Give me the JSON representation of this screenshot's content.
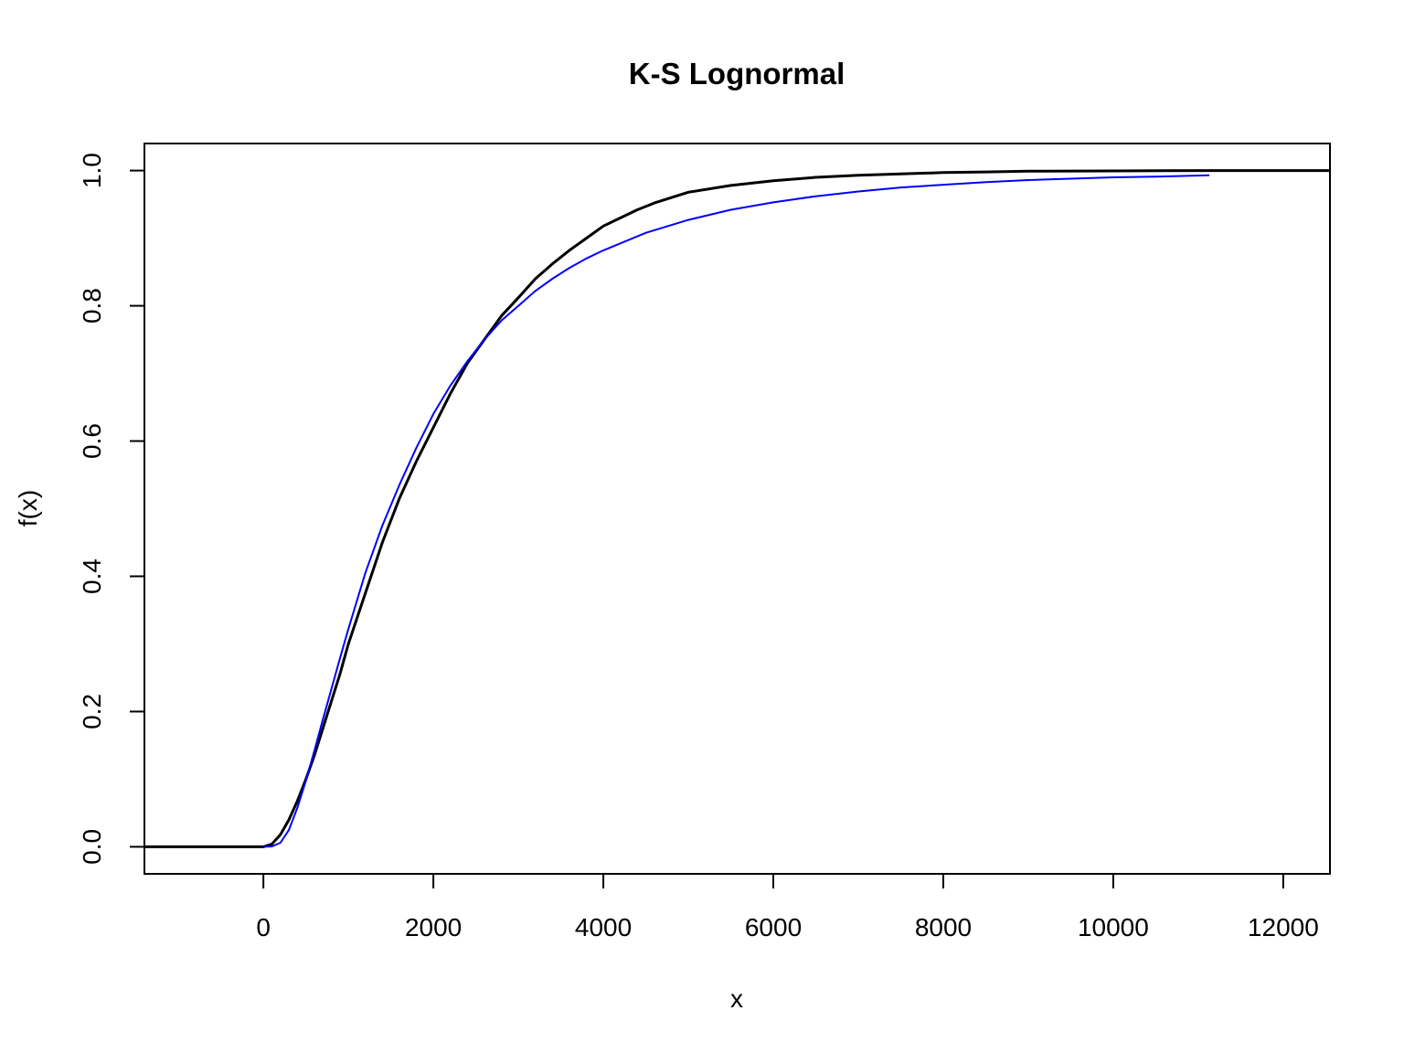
{
  "chart_data": {
    "type": "line",
    "title": "K-S Lognormal",
    "xlabel": "x",
    "ylabel": "f(x)",
    "xlim": [
      -1400,
      12550
    ],
    "ylim": [
      -0.04,
      1.04
    ],
    "x_ticks": [
      0,
      2000,
      4000,
      6000,
      8000,
      10000,
      12000
    ],
    "x_tick_labels": [
      "0",
      "2000",
      "4000",
      "6000",
      "8000",
      "10000",
      "12000"
    ],
    "y_ticks": [
      0.0,
      0.2,
      0.4,
      0.6,
      0.8,
      1.0
    ],
    "y_tick_labels": [
      "0.0",
      "0.2",
      "0.4",
      "0.6",
      "0.8",
      "1.0"
    ],
    "grid": false,
    "series": [
      {
        "color": "#000000",
        "stroke_width": 3,
        "x": [
          -1400,
          0,
          100,
          200,
          300,
          400,
          500,
          600,
          700,
          800,
          900,
          1000,
          1200,
          1400,
          1600,
          1800,
          2000,
          2200,
          2400,
          2600,
          2800,
          3000,
          3200,
          3400,
          3600,
          3800,
          4000,
          4200,
          4400,
          4600,
          4800,
          5000,
          5500,
          6000,
          6500,
          7000,
          7500,
          8000,
          8500,
          9000,
          10000,
          11150,
          12550
        ],
        "y": [
          0,
          0,
          0.004,
          0.018,
          0.04,
          0.068,
          0.1,
          0.135,
          0.175,
          0.215,
          0.255,
          0.3,
          0.375,
          0.45,
          0.515,
          0.57,
          0.62,
          0.67,
          0.715,
          0.75,
          0.785,
          0.812,
          0.84,
          0.862,
          0.882,
          0.9,
          0.918,
          0.93,
          0.942,
          0.952,
          0.96,
          0.968,
          0.978,
          0.985,
          0.99,
          0.993,
          0.995,
          0.997,
          0.998,
          0.999,
          0.9995,
          1.0,
          1.0
        ]
      },
      {
        "color": "#0000ff",
        "stroke_width": 2,
        "x": [
          0,
          100,
          200,
          300,
          400,
          500,
          600,
          700,
          800,
          900,
          1000,
          1200,
          1400,
          1600,
          1800,
          2000,
          2200,
          2400,
          2600,
          2800,
          3000,
          3200,
          3400,
          3600,
          3800,
          4000,
          4500,
          5000,
          5500,
          6000,
          6500,
          7000,
          7500,
          8000,
          8500,
          9000,
          9500,
          10000,
          10500,
          11130
        ],
        "y": [
          0,
          0.0005,
          0.006,
          0.025,
          0.058,
          0.098,
          0.142,
          0.188,
          0.233,
          0.278,
          0.322,
          0.405,
          0.475,
          0.535,
          0.59,
          0.64,
          0.682,
          0.718,
          0.75,
          0.778,
          0.8,
          0.822,
          0.84,
          0.856,
          0.87,
          0.882,
          0.908,
          0.927,
          0.942,
          0.953,
          0.962,
          0.969,
          0.975,
          0.979,
          0.983,
          0.986,
          0.988,
          0.99,
          0.991,
          0.993
        ]
      }
    ]
  }
}
